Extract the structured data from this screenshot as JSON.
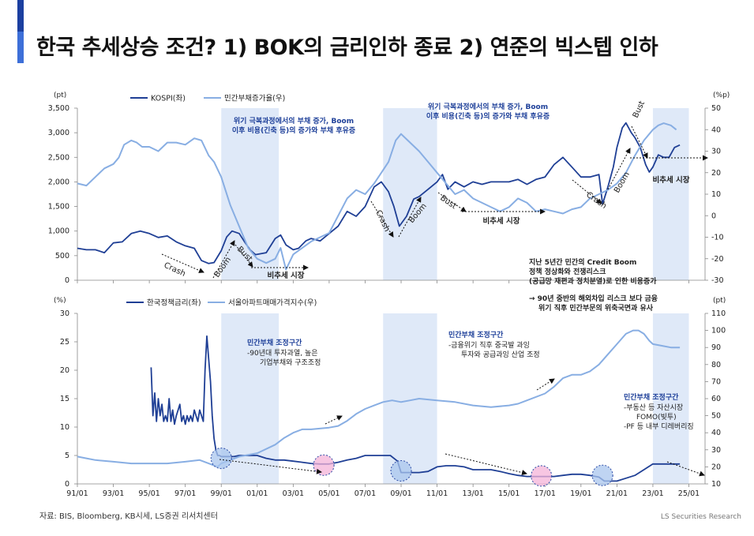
{
  "title": "한국 추세상승 조건? 1) BOK의 금리인하 종료 2) 연준의 빅스텝 인하",
  "source": "자료: BIS, Bloomberg, KB시세, LS증권 리서치센터",
  "brand": "LS Securities Research",
  "colors": {
    "dark": "#1f3f95",
    "light": "#88aee3",
    "shade": "#dfe9f8",
    "accent": "#3d6fd8",
    "circle_blue": "#a9c6ee",
    "circle_pink": "#f4b3d8"
  },
  "chart_data": [
    {
      "type": "line",
      "title": "",
      "left_unit": "(pt)",
      "right_unit": "(%p)",
      "ylim_left": [
        0,
        3500
      ],
      "ylim_right": [
        -30,
        50
      ],
      "yticks_left": [
        "0",
        "500",
        "1,000",
        "1,500",
        "2,000",
        "2,500",
        "3,000",
        "3,500"
      ],
      "yticks_right": [
        "-30",
        "-20",
        "-10",
        "0",
        "10",
        "20",
        "30",
        "40",
        "50"
      ],
      "shaded_periods": [
        [
          1999.0,
          2002.2
        ],
        [
          2008.0,
          2011.0
        ],
        [
          2023.0,
          2025.0
        ]
      ],
      "series": [
        {
          "name": "KOSPI(좌)",
          "axis": "left",
          "color": "#1f3f95",
          "x": [
            1991.0,
            1991.5,
            1992.0,
            1992.5,
            1993.0,
            1993.5,
            1994.0,
            1994.5,
            1995.0,
            1995.5,
            1996.0,
            1996.5,
            1997.0,
            1997.5,
            1997.9,
            1998.3,
            1998.6,
            1999.0,
            1999.3,
            1999.6,
            2000.0,
            2000.3,
            2000.6,
            2000.9,
            2001.5,
            2002.0,
            2002.3,
            2002.6,
            2003.0,
            2003.3,
            2003.7,
            2004.0,
            2004.5,
            2005.0,
            2005.5,
            2006.0,
            2006.5,
            2007.0,
            2007.5,
            2007.9,
            2008.3,
            2008.6,
            2008.9,
            2009.3,
            2009.7,
            2010.0,
            2010.5,
            2011.0,
            2011.3,
            2011.6,
            2012.0,
            2012.5,
            2013.0,
            2013.5,
            2014.0,
            2014.5,
            2015.0,
            2015.5,
            2016.0,
            2016.5,
            2017.0,
            2017.5,
            2018.0,
            2018.5,
            2019.0,
            2019.5,
            2020.0,
            2020.2,
            2020.5,
            2020.8,
            2021.0,
            2021.3,
            2021.5,
            2021.8,
            2022.0,
            2022.3,
            2022.6,
            2022.8,
            2023.0,
            2023.3,
            2023.6,
            2023.9,
            2024.2,
            2024.5
          ],
          "y": [
            650,
            620,
            620,
            560,
            760,
            780,
            950,
            1000,
            950,
            870,
            900,
            780,
            700,
            650,
            400,
            340,
            360,
            600,
            880,
            1000,
            950,
            780,
            620,
            520,
            560,
            850,
            920,
            720,
            620,
            650,
            800,
            850,
            800,
            950,
            1100,
            1400,
            1300,
            1500,
            1900,
            2000,
            1800,
            1500,
            1100,
            1300,
            1650,
            1700,
            1850,
            2000,
            2150,
            1850,
            2000,
            1900,
            2000,
            1950,
            2000,
            2000,
            2000,
            2050,
            1950,
            2050,
            2100,
            2350,
            2500,
            2300,
            2100,
            2100,
            2150,
            1550,
            1900,
            2300,
            2700,
            3100,
            3200,
            3000,
            2900,
            2700,
            2350,
            2200,
            2300,
            2550,
            2500,
            2500,
            2700,
            2750
          ]
        },
        {
          "name": "민간부채증가율(우)",
          "axis": "right",
          "color": "#88aee3",
          "x": [
            1991.0,
            1991.5,
            1992.0,
            1992.5,
            1993.0,
            1993.3,
            1993.6,
            1994.0,
            1994.3,
            1994.6,
            1995.0,
            1995.5,
            1996.0,
            1996.5,
            1997.0,
            1997.5,
            1997.9,
            1998.3,
            1998.6,
            1999.0,
            1999.5,
            2000.0,
            2000.5,
            2001.0,
            2001.5,
            2002.0,
            2002.3,
            2002.6,
            2003.0,
            2004.0,
            2004.5,
            2005.0,
            2005.5,
            2006.0,
            2006.5,
            2007.0,
            2007.5,
            2007.9,
            2008.3,
            2008.7,
            2009.0,
            2009.5,
            2010.0,
            2010.5,
            2011.0,
            2011.5,
            2012.0,
            2012.5,
            2013.0,
            2013.5,
            2014.0,
            2014.5,
            2015.0,
            2015.5,
            2016.0,
            2016.5,
            2017.0,
            2017.5,
            2018.0,
            2018.5,
            2019.0,
            2019.5,
            2020.0,
            2020.5,
            2021.0,
            2021.5,
            2022.0,
            2022.5,
            2023.0,
            2023.3,
            2023.6,
            2024.0,
            2024.3
          ],
          "y": [
            15,
            14,
            18,
            22,
            24,
            27,
            33,
            35,
            34,
            32,
            32,
            30,
            34,
            34,
            33,
            36,
            35,
            28,
            25,
            18,
            5,
            -5,
            -15,
            -20,
            -22,
            -20,
            -15,
            -25,
            -18,
            -12,
            -10,
            -8,
            0,
            8,
            12,
            10,
            15,
            20,
            25,
            35,
            38,
            34,
            30,
            25,
            20,
            15,
            10,
            12,
            8,
            6,
            4,
            2,
            4,
            8,
            6,
            2,
            3,
            2,
            1,
            3,
            4,
            8,
            10,
            12,
            15,
            20,
            28,
            35,
            40,
            42,
            43,
            42,
            40
          ]
        }
      ],
      "xticks": [
        "91/01",
        "93/01",
        "95/01",
        "97/01",
        "99/01",
        "01/01",
        "03/01",
        "05/01",
        "07/01",
        "09/01",
        "11/01",
        "13/01",
        "15/01",
        "17/01",
        "19/01",
        "21/01",
        "23/01",
        "25/01"
      ],
      "annotations": [
        "위기 극복과정에서의 부채 증가, Boom",
        "이후 비용(긴축 등)의 증가와 부채 후유증",
        "위기 극복과정에서의 부채 증가, Boom",
        "이후 비용(긴축 등)의 증가와 부채 후유증",
        "Crash",
        "Boom",
        "Bust",
        "비추세 시장",
        "Crash",
        "Boom",
        "Bust",
        "비추세 시장",
        "Crash",
        "Boom",
        "Bust",
        "비추세 시장",
        "지난 5년간 민간의 Credit Boom",
        "정책 정상화와 전쟁리스크",
        "(공급망 재편과 정치분열)로 인한 비용증가",
        "→ 90년 중반의 해외차입 리스크 보다 금융",
        "위기 직후 민간부문의 위축국면과 유사"
      ]
    },
    {
      "type": "line",
      "title": "",
      "left_unit": "(%)",
      "right_unit": "(pt)",
      "ylim_left": [
        0,
        30
      ],
      "ylim_right": [
        10,
        110
      ],
      "yticks_left": [
        "0",
        "5",
        "10",
        "15",
        "20",
        "25",
        "30"
      ],
      "yticks_right": [
        "10",
        "20",
        "30",
        "40",
        "50",
        "60",
        "70",
        "80",
        "90",
        "100",
        "110"
      ],
      "shaded_periods": [
        [
          1999.0,
          2002.2
        ],
        [
          2008.0,
          2011.0
        ],
        [
          2023.0,
          2025.0
        ]
      ],
      "series": [
        {
          "name": "한국정책금리(좌)",
          "axis": "left",
          "color": "#1f3f95",
          "x": [
            1995.1,
            1995.2,
            1995.3,
            1995.4,
            1995.5,
            1995.6,
            1995.7,
            1995.8,
            1995.9,
            1996.0,
            1996.1,
            1996.2,
            1996.3,
            1996.4,
            1996.5,
            1996.6,
            1996.7,
            1996.8,
            1996.9,
            1997.0,
            1997.1,
            1997.2,
            1997.3,
            1997.4,
            1997.5,
            1997.6,
            1997.7,
            1997.8,
            1997.9,
            1998.0,
            1998.1,
            1998.2,
            1998.3,
            1998.4,
            1998.5,
            1998.6,
            1998.7,
            1998.8,
            1998.9,
            1999.0,
            1999.3,
            1999.7,
            2000.0,
            2000.5,
            2001.0,
            2001.5,
            2002.0,
            2002.5,
            2003.0,
            2003.5,
            2004.0,
            2004.5,
            2005.0,
            2005.5,
            2006.0,
            2006.5,
            2007.0,
            2007.5,
            2008.0,
            2008.4,
            2008.8,
            2009.0,
            2009.5,
            2010.0,
            2010.5,
            2011.0,
            2011.5,
            2012.0,
            2012.5,
            2013.0,
            2013.5,
            2014.0,
            2014.5,
            2015.0,
            2015.5,
            2016.0,
            2016.5,
            2017.0,
            2017.5,
            2018.0,
            2018.5,
            2019.0,
            2019.5,
            2020.0,
            2020.3,
            2020.6,
            2021.0,
            2021.5,
            2022.0,
            2022.5,
            2023.0,
            2024.0,
            2024.5
          ],
          "y": [
            20.5,
            12,
            16,
            11,
            15,
            12,
            14,
            11,
            12,
            11,
            15,
            11,
            13,
            10.5,
            12,
            13,
            14,
            11,
            12,
            10.5,
            12,
            11,
            12,
            11,
            13,
            12,
            11,
            13,
            12,
            11,
            20,
            26,
            22,
            18,
            12,
            8,
            6,
            5,
            5,
            4.8,
            4.8,
            4.8,
            5,
            5,
            5,
            4.5,
            4.2,
            4.2,
            4,
            3.8,
            3.6,
            3.5,
            3.5,
            3.8,
            4.2,
            4.5,
            5,
            5,
            5,
            5,
            4,
            2,
            2,
            2,
            2.2,
            3,
            3.2,
            3.2,
            3,
            2.5,
            2.5,
            2.5,
            2.2,
            1.8,
            1.5,
            1.3,
            1.3,
            1.3,
            1.3,
            1.5,
            1.7,
            1.7,
            1.5,
            1.2,
            0.5,
            0.5,
            0.5,
            1,
            1.5,
            2.5,
            3.5,
            3.5,
            3.5
          ]
        },
        {
          "name": "서울아파트매매가격지수(우)",
          "axis": "right",
          "color": "#88aee3",
          "x": [
            1991.0,
            1991.5,
            1992.0,
            1993.0,
            1994.0,
            1995.0,
            1996.0,
            1997.0,
            1997.8,
            1998.3,
            1998.8,
            1999.0,
            1999.5,
            2000.0,
            2001.0,
            2002.0,
            2002.5,
            2003.0,
            2003.5,
            2004.0,
            2005.0,
            2005.5,
            2006.0,
            2006.5,
            2007.0,
            2007.5,
            2008.0,
            2008.5,
            2009.0,
            2009.5,
            2010.0,
            2011.0,
            2012.0,
            2013.0,
            2014.0,
            2015.0,
            2015.5,
            2016.0,
            2017.0,
            2017.5,
            2018.0,
            2018.5,
            2019.0,
            2019.5,
            2020.0,
            2020.5,
            2021.0,
            2021.5,
            2021.9,
            2022.2,
            2022.5,
            2022.8,
            2023.0,
            2023.5,
            2024.0,
            2024.5
          ],
          "y": [
            26,
            25,
            24,
            23,
            22,
            22,
            22,
            23,
            24,
            22,
            20,
            22,
            24,
            26,
            28,
            33,
            37,
            40,
            42,
            42,
            43,
            44,
            47,
            51,
            54,
            56,
            58,
            59,
            58,
            59,
            60,
            59,
            58,
            56,
            55,
            56,
            57,
            59,
            63,
            67,
            72,
            74,
            74,
            76,
            80,
            86,
            92,
            98,
            100,
            100,
            98,
            94,
            92,
            91,
            90,
            90
          ]
        }
      ],
      "xticks": [
        "91/01",
        "93/01",
        "95/01",
        "97/01",
        "99/01",
        "01/01",
        "03/01",
        "05/01",
        "07/01",
        "09/01",
        "11/01",
        "13/01",
        "15/01",
        "17/01",
        "19/01",
        "21/01",
        "23/01",
        "25/01"
      ],
      "circles": [
        {
          "x": 1999.0,
          "y": 4.5,
          "color": "blue"
        },
        {
          "x": 2004.7,
          "y": 3.3,
          "color": "pink"
        },
        {
          "x": 2009.0,
          "y": 2.3,
          "color": "blue"
        },
        {
          "x": 2016.8,
          "y": 1.4,
          "color": "pink"
        },
        {
          "x": 2020.2,
          "y": 1.5,
          "color": "blue"
        }
      ],
      "annotations": [
        {
          "title": "민간부채 조정구간",
          "lines": [
            "-90년대 투자과열, 높은",
            "기업부채와 구조조정"
          ]
        },
        {
          "title": "민간부채 조정구간",
          "lines": [
            "-금융위기 직후 중국발 과잉",
            "투자와 공급과잉 산업 조정"
          ]
        },
        {
          "title": "민간부채 조정구간",
          "lines": [
            "-부동산 등 자산시장",
            "FOMO(빚투)",
            "-PF 등 내부 디레버리징"
          ]
        }
      ]
    }
  ]
}
